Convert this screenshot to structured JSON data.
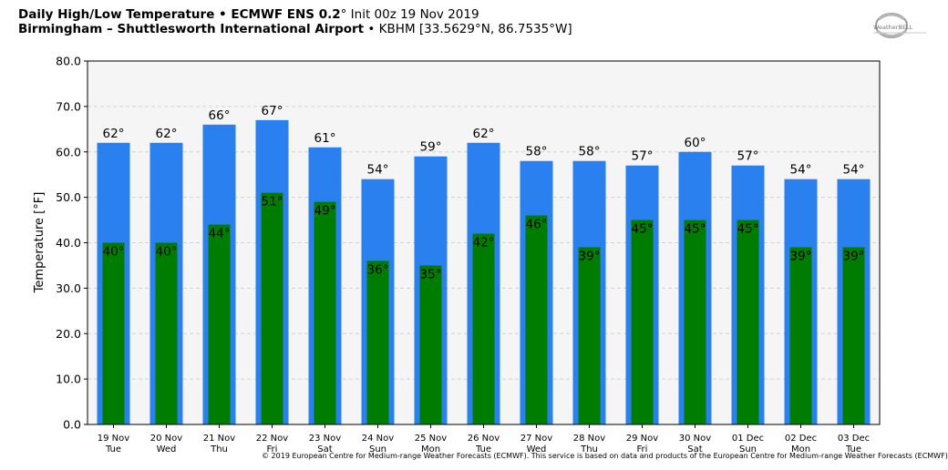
{
  "header": {
    "title_bold": "Daily High/Low Temperature • ECMWF ENS 0.2",
    "title_deg": "°",
    "title_init": " Init 00z 19 Nov 2019",
    "location_bold": "Birmingham – Shuttlesworth International Airport",
    "location_rest": " • KBHM [33.5629°N, 86.7535°W]"
  },
  "logo": {
    "icon": "weatherbell-logo",
    "text": "WeatherBELL"
  },
  "copyright": "© 2019 European Centre for Medium-range Weather Forecasts (ECMWF). This service is based on data and products of the European Centre for Medium-range Weather Forecasts (ECMWF)",
  "colors": {
    "high": "#2a80ee",
    "low": "#007d00",
    "plot_bg": "#f5f5f5",
    "grid": "#d2d2d2"
  },
  "chart_data": {
    "type": "bar",
    "ylabel": "Temperature [°F]",
    "ylim": [
      0,
      80
    ],
    "yticks": [
      "0.0",
      "10.0",
      "20.0",
      "30.0",
      "40.0",
      "50.0",
      "60.0",
      "70.0",
      "80.0"
    ],
    "grid": true,
    "categories": [
      "19 Nov",
      "20 Nov",
      "21 Nov",
      "22 Nov",
      "23 Nov",
      "24 Nov",
      "25 Nov",
      "26 Nov",
      "27 Nov",
      "28 Nov",
      "29 Nov",
      "30 Nov",
      "01 Dec",
      "02 Dec",
      "03 Dec"
    ],
    "weekdays": [
      "Tue",
      "Wed",
      "Thu",
      "Fri",
      "Sat",
      "Sun",
      "Mon",
      "Tue",
      "Wed",
      "Thu",
      "Fri",
      "Sat",
      "Sun",
      "Mon",
      "Tue"
    ],
    "series": [
      {
        "values": [
          62,
          62,
          66,
          67,
          61,
          54,
          59,
          62,
          58,
          58,
          57,
          60,
          57,
          54,
          54
        ],
        "labels": [
          "62°",
          "62°",
          "66°",
          "67°",
          "61°",
          "54°",
          "59°",
          "62°",
          "58°",
          "58°",
          "57°",
          "60°",
          "57°",
          "54°",
          "54°"
        ]
      },
      {
        "values": [
          40,
          40,
          44,
          51,
          49,
          36,
          35,
          42,
          46,
          39,
          45,
          45,
          45,
          39,
          39
        ],
        "labels": [
          "40°",
          "40°",
          "44°",
          "51°",
          "49°",
          "36°",
          "35°",
          "42°",
          "46°",
          "39°",
          "45°",
          "45°",
          "45°",
          "39°",
          "39°"
        ]
      }
    ]
  }
}
